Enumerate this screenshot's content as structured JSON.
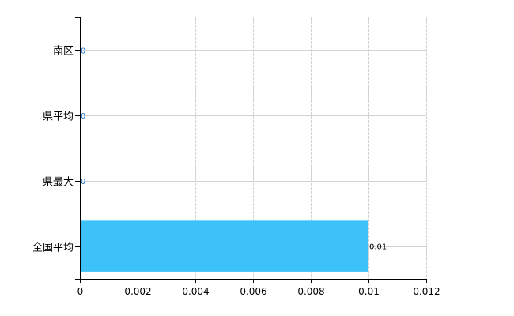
{
  "chart_data": {
    "type": "bar",
    "orientation": "horizontal",
    "categories": [
      "全国平均",
      "県最大",
      "県平均",
      "南区"
    ],
    "values": [
      0.01,
      0,
      0,
      0
    ],
    "data_labels": [
      "0.01",
      "0",
      "0",
      "0"
    ],
    "xlim": [
      0,
      0.012
    ],
    "xticks": [
      "0",
      "0.002",
      "0.004",
      "0.006",
      "0.008",
      "0.01",
      "0.012"
    ],
    "title": "",
    "xlabel": "",
    "ylabel": "",
    "grid": true,
    "legend": "none",
    "colors": {
      "bar": "#3cc2f8",
      "grid": "#d3d3d3",
      "zero_label": "#1a6fc0",
      "label": "#000000"
    }
  }
}
